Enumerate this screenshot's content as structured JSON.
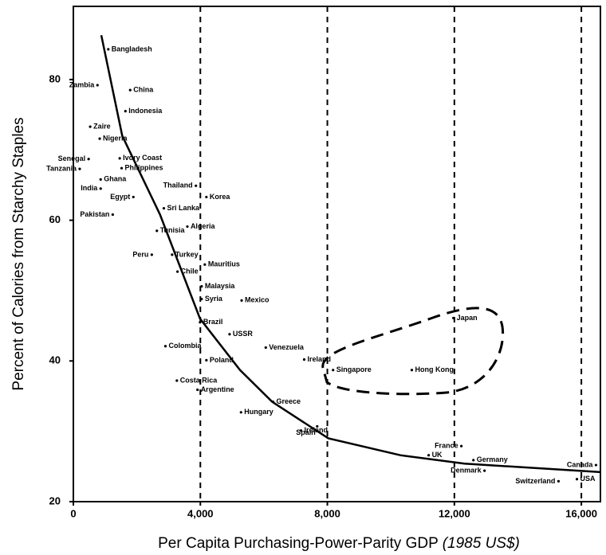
{
  "chart_data": {
    "type": "scatter",
    "ylabel": "Percent of Calories from Starchy Staples",
    "xlabel": "Per Capita Purchasing-Power-Parity GDP",
    "xlabel_note": "(1985 US$)",
    "xlim": [
      0,
      16600
    ],
    "ylim": [
      20,
      90.4
    ],
    "xticks": [
      {
        "value": 0,
        "label": "0"
      },
      {
        "value": 4000,
        "label": "4,000"
      },
      {
        "value": 8000,
        "label": "8,000"
      },
      {
        "value": 12000,
        "label": "12,000"
      },
      {
        "value": 16000,
        "label": "16,000"
      }
    ],
    "yticks": [
      20,
      40,
      60,
      80
    ],
    "grid": "x-dashed",
    "color": "#000000",
    "points": {
      "labels": [
        "Bangladesh",
        "Zambia",
        "China",
        "Indonesia",
        "Zaire",
        "Nigeria",
        "Senegal",
        "Ivory Coast",
        "Tanzania",
        "Philippines",
        "Ghana",
        "Thailand",
        "India",
        "Egypt",
        "Korea",
        "Sri Lanka",
        "Pakistan",
        "Algeria",
        "Tunisia",
        "Turkey",
        "Peru",
        "Mauritius",
        "Chile",
        "Malaysia",
        "Syria",
        "Mexico",
        "Brazil",
        "USSR",
        "Colombia",
        "Venezuela",
        "Poland",
        "Ireland",
        "Singapore",
        "Hong Kong",
        "Japan",
        "Costa Rica",
        "Argentine",
        "Greece",
        "Hungary",
        "Spain",
        "Ireland",
        "France",
        "UK",
        "Germany",
        "Denmark",
        "Switzerland",
        "Canada",
        "USA"
      ],
      "x": [
        1100,
        760,
        1790,
        1640,
        530,
        830,
        480,
        1460,
        200,
        1520,
        860,
        3860,
        860,
        1890,
        4190,
        2850,
        1240,
        3590,
        2630,
        3110,
        2470,
        4140,
        3280,
        4040,
        4040,
        5300,
        3990,
        4920,
        2900,
        6060,
        4190,
        7270,
        8180,
        10660,
        11970,
        3260,
        3910,
        6290,
        5280,
        7680,
        7170,
        12220,
        11190,
        12600,
        12950,
        15280,
        16460,
        15860
      ],
      "y": [
        84.3,
        79.2,
        78.5,
        75.5,
        73.3,
        71.6,
        68.7,
        68.8,
        67.3,
        67.4,
        65.8,
        64.9,
        64.5,
        63.3,
        63.3,
        61.7,
        60.8,
        59.1,
        58.5,
        55.1,
        55.1,
        53.7,
        52.7,
        50.6,
        48.8,
        48.6,
        45.5,
        43.8,
        42.1,
        41.9,
        40.1,
        40.2,
        38.7,
        38.7,
        46.1,
        37.2,
        35.9,
        34.2,
        32.7,
        30.7,
        30.1,
        27.9,
        26.6,
        25.9,
        24.4,
        22.9,
        25.2,
        23.2
      ]
    },
    "curve": {
      "x": [
        880,
        1540,
        2730,
        3990,
        5250,
        6260,
        8030,
        10300,
        12320,
        16600
      ],
      "y": [
        86.3,
        72,
        60.8,
        46,
        38.7,
        34.2,
        29,
        26.6,
        25.4,
        24.2
      ]
    }
  }
}
